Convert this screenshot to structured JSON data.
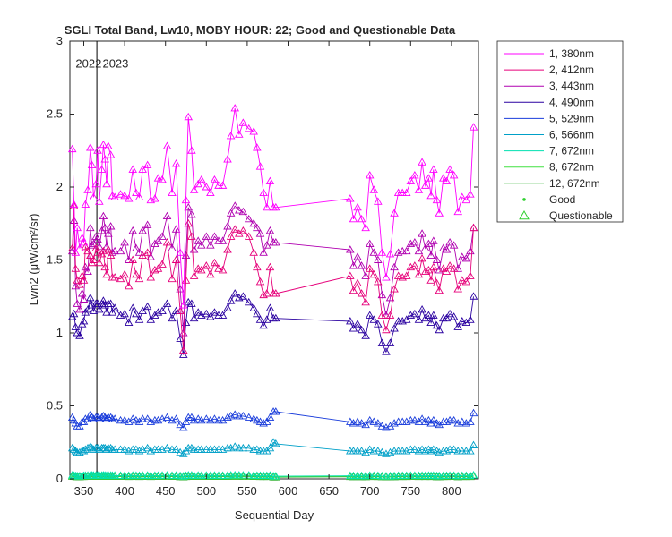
{
  "chart_data": {
    "type": "line",
    "title": "SGLI Total Band, Lw10, MOBY HOUR: 22;  Good and Questionable Data",
    "xlabel": "Sequential Day",
    "ylabel": "Lwn2 (μW/cm²/sr)",
    "xlim": [
      333,
      833
    ],
    "ylim": [
      0,
      3
    ],
    "xticks": [
      350,
      400,
      450,
      500,
      550,
      600,
      650,
      700,
      750,
      800
    ],
    "yticks": [
      0,
      0.5,
      1,
      1.5,
      2,
      2.5,
      3
    ],
    "ytick_labels": [
      "0",
      "0.5",
      "1",
      "1.5",
      "2",
      "2.5",
      "3"
    ],
    "grid": false,
    "legend_placement": "outside-right",
    "vlines": [
      {
        "x": 366,
        "label": "2023"
      }
    ],
    "annotations": [
      {
        "text": "2022",
        "x": 340,
        "y": 2.85
      },
      {
        "text": "2023",
        "x": 373,
        "y": 2.85
      }
    ],
    "x": [
      336,
      338,
      340,
      342,
      345,
      348,
      350,
      352,
      355,
      358,
      360,
      362,
      365,
      367,
      369,
      372,
      374,
      376,
      378,
      380,
      383,
      385,
      388,
      395,
      400,
      405,
      410,
      414,
      418,
      422,
      428,
      432,
      437,
      441,
      446,
      452,
      458,
      463,
      468,
      472,
      475,
      478,
      482,
      485,
      490,
      494,
      500,
      505,
      510,
      515,
      520,
      526,
      530,
      535,
      540,
      545,
      552,
      558,
      562,
      566,
      570,
      574,
      578,
      582,
      585,
      676,
      680,
      685,
      690,
      695,
      700,
      705,
      710,
      715,
      720,
      725,
      730,
      735,
      740,
      745,
      750,
      755,
      760,
      764,
      768,
      772,
      775,
      778,
      782,
      785,
      790,
      794,
      798,
      803,
      808,
      813,
      818,
      823,
      827
    ],
    "series": [
      {
        "name": "1, 380nm",
        "color": "#ff00ff",
        "values": [
          2.26,
          1.88,
          1.55,
          1.72,
          1.58,
          1.65,
          1.62,
          1.88,
          1.98,
          2.27,
          2.15,
          1.93,
          2.02,
          2.25,
          1.9,
          2.12,
          2.29,
          2.19,
          2.02,
          2.28,
          2.22,
          1.94,
          1.93,
          1.95,
          1.94,
          1.92,
          2.12,
          1.96,
          1.93,
          2.12,
          2.15,
          1.91,
          1.92,
          2.06,
          2.05,
          2.28,
          1.96,
          2.16,
          1.55,
          1.19,
          1.91,
          2.48,
          2.25,
          1.98,
          2.02,
          2.05,
          2.0,
          1.96,
          2.05,
          2.01,
          2.01,
          2.19,
          2.35,
          2.54,
          2.36,
          2.44,
          2.4,
          2.38,
          2.27,
          2.14,
          1.96,
          1.86,
          2.04,
          1.86,
          1.86,
          1.92,
          1.78,
          1.86,
          1.78,
          1.72,
          2.08,
          1.98,
          1.9,
          1.55,
          1.38,
          1.54,
          1.82,
          1.96,
          1.96,
          1.96,
          2.04,
          2.08,
          1.98,
          2.17,
          2.01,
          2.06,
          1.94,
          2.12,
          1.91,
          1.82,
          2.06,
          2.04,
          2.12,
          2.08,
          1.83,
          1.93,
          1.91,
          1.95,
          2.41
        ]
      },
      {
        "name": "2, 412nm",
        "color": "#e6007a",
        "values": [
          1.58,
          1.87,
          1.44,
          1.36,
          1.33,
          1.39,
          1.36,
          1.59,
          1.56,
          1.53,
          1.48,
          1.5,
          1.58,
          1.55,
          1.48,
          1.54,
          1.56,
          1.45,
          1.4,
          1.57,
          1.53,
          1.38,
          1.38,
          1.37,
          1.4,
          1.32,
          1.5,
          1.4,
          1.37,
          1.53,
          1.55,
          1.38,
          1.43,
          1.44,
          1.47,
          1.62,
          1.37,
          1.5,
          1.15,
          0.88,
          1.36,
          1.75,
          1.66,
          1.39,
          1.44,
          1.43,
          1.46,
          1.4,
          1.48,
          1.44,
          1.43,
          1.57,
          1.66,
          1.71,
          1.68,
          1.7,
          1.66,
          1.55,
          1.45,
          1.35,
          1.26,
          1.27,
          1.45,
          1.27,
          1.27,
          1.39,
          1.29,
          1.34,
          1.27,
          1.21,
          1.44,
          1.4,
          1.35,
          1.12,
          1.02,
          1.12,
          1.3,
          1.39,
          1.38,
          1.39,
          1.45,
          1.46,
          1.4,
          1.51,
          1.42,
          1.43,
          1.36,
          1.45,
          1.34,
          1.29,
          1.44,
          1.42,
          1.46,
          1.44,
          1.3,
          1.36,
          1.35,
          1.39,
          1.72
        ]
      },
      {
        "name": "3, 443nm",
        "color": "#b000b0",
        "values": [
          1.56,
          1.77,
          1.32,
          1.2,
          1.16,
          1.27,
          1.23,
          1.45,
          1.42,
          1.72,
          1.6,
          1.61,
          1.66,
          1.64,
          1.59,
          1.7,
          1.8,
          1.72,
          1.59,
          1.68,
          1.73,
          1.55,
          1.56,
          1.56,
          1.62,
          1.5,
          1.7,
          1.58,
          1.55,
          1.7,
          1.74,
          1.52,
          1.61,
          1.63,
          1.66,
          1.8,
          1.58,
          1.71,
          1.3,
          1.0,
          1.53,
          1.86,
          1.81,
          1.57,
          1.63,
          1.6,
          1.66,
          1.6,
          1.66,
          1.63,
          1.63,
          1.73,
          1.82,
          1.87,
          1.84,
          1.83,
          1.78,
          1.75,
          1.72,
          1.68,
          1.55,
          1.6,
          1.7,
          1.62,
          1.62,
          1.57,
          1.46,
          1.52,
          1.46,
          1.39,
          1.61,
          1.55,
          1.5,
          1.26,
          1.12,
          1.24,
          1.45,
          1.55,
          1.56,
          1.56,
          1.61,
          1.62,
          1.56,
          1.68,
          1.58,
          1.61,
          1.53,
          1.63,
          1.5,
          1.43,
          1.58,
          1.57,
          1.62,
          1.6,
          1.44,
          1.52,
          1.51,
          1.56,
          1.72
        ]
      },
      {
        "name": "4, 490nm",
        "color": "#2a00a0",
        "values": [
          1.11,
          1.13,
          1.04,
          1.0,
          0.98,
          1.06,
          1.08,
          1.14,
          1.16,
          1.24,
          1.19,
          1.15,
          1.2,
          1.2,
          1.16,
          1.2,
          1.22,
          1.19,
          1.14,
          1.2,
          1.2,
          1.14,
          1.17,
          1.12,
          1.13,
          1.07,
          1.17,
          1.13,
          1.09,
          1.15,
          1.18,
          1.09,
          1.12,
          1.14,
          1.15,
          1.2,
          1.1,
          1.15,
          0.96,
          0.85,
          1.07,
          1.21,
          1.2,
          1.1,
          1.14,
          1.12,
          1.13,
          1.11,
          1.14,
          1.12,
          1.12,
          1.17,
          1.22,
          1.27,
          1.24,
          1.25,
          1.21,
          1.17,
          1.13,
          1.09,
          1.05,
          1.09,
          1.17,
          1.1,
          1.1,
          1.08,
          1.03,
          1.06,
          1.02,
          0.98,
          1.12,
          1.09,
          1.06,
          0.93,
          0.87,
          0.93,
          1.03,
          1.08,
          1.08,
          1.09,
          1.12,
          1.13,
          1.09,
          1.16,
          1.1,
          1.12,
          1.07,
          1.12,
          1.05,
          1.02,
          1.1,
          1.1,
          1.13,
          1.11,
          1.04,
          1.08,
          1.07,
          1.09,
          1.25
        ]
      },
      {
        "name": "5, 529nm",
        "color": "#1a3ddb",
        "values": [
          0.42,
          0.4,
          0.38,
          0.36,
          0.36,
          0.39,
          0.39,
          0.41,
          0.41,
          0.44,
          0.42,
          0.41,
          0.42,
          0.42,
          0.41,
          0.42,
          0.43,
          0.42,
          0.41,
          0.42,
          0.42,
          0.41,
          0.41,
          0.4,
          0.4,
          0.39,
          0.41,
          0.4,
          0.39,
          0.41,
          0.41,
          0.39,
          0.4,
          0.4,
          0.41,
          0.42,
          0.4,
          0.41,
          0.37,
          0.35,
          0.39,
          0.42,
          0.42,
          0.4,
          0.41,
          0.4,
          0.41,
          0.4,
          0.41,
          0.4,
          0.4,
          0.42,
          0.43,
          0.44,
          0.43,
          0.43,
          0.42,
          0.41,
          0.4,
          0.39,
          0.38,
          0.39,
          0.42,
          0.46,
          0.46,
          0.39,
          0.38,
          0.39,
          0.38,
          0.37,
          0.4,
          0.39,
          0.38,
          0.36,
          0.35,
          0.36,
          0.38,
          0.39,
          0.39,
          0.39,
          0.4,
          0.4,
          0.39,
          0.41,
          0.39,
          0.4,
          0.38,
          0.4,
          0.38,
          0.37,
          0.39,
          0.39,
          0.4,
          0.4,
          0.38,
          0.39,
          0.38,
          0.39,
          0.45
        ]
      },
      {
        "name": "6, 566nm",
        "color": "#00a0c8",
        "values": [
          0.21,
          0.2,
          0.19,
          0.18,
          0.18,
          0.19,
          0.19,
          0.2,
          0.21,
          0.22,
          0.21,
          0.2,
          0.21,
          0.21,
          0.2,
          0.21,
          0.21,
          0.21,
          0.2,
          0.21,
          0.21,
          0.2,
          0.2,
          0.2,
          0.2,
          0.19,
          0.2,
          0.2,
          0.19,
          0.2,
          0.21,
          0.19,
          0.2,
          0.2,
          0.2,
          0.21,
          0.2,
          0.2,
          0.18,
          0.17,
          0.19,
          0.21,
          0.21,
          0.2,
          0.2,
          0.2,
          0.2,
          0.2,
          0.2,
          0.2,
          0.2,
          0.21,
          0.21,
          0.22,
          0.21,
          0.21,
          0.21,
          0.2,
          0.2,
          0.19,
          0.19,
          0.19,
          0.21,
          0.25,
          0.24,
          0.19,
          0.19,
          0.19,
          0.19,
          0.18,
          0.2,
          0.19,
          0.19,
          0.18,
          0.17,
          0.18,
          0.19,
          0.19,
          0.19,
          0.19,
          0.2,
          0.2,
          0.19,
          0.2,
          0.19,
          0.2,
          0.19,
          0.2,
          0.19,
          0.18,
          0.19,
          0.19,
          0.2,
          0.2,
          0.19,
          0.19,
          0.19,
          0.19,
          0.23
        ]
      },
      {
        "name": "7, 672nm",
        "color": "#00e0b0",
        "values": [
          0.024,
          0.022,
          0.02,
          0.019,
          0.019,
          0.021,
          0.021,
          0.022,
          0.023,
          0.025,
          0.024,
          0.023,
          0.023,
          0.024,
          0.023,
          0.023,
          0.024,
          0.023,
          0.022,
          0.024,
          0.023,
          0.022,
          0.023,
          0.022,
          0.022,
          0.021,
          0.023,
          0.022,
          0.021,
          0.023,
          0.023,
          0.021,
          0.022,
          0.022,
          0.023,
          0.024,
          0.022,
          0.023,
          0.02,
          0.018,
          0.021,
          0.024,
          0.024,
          0.022,
          0.023,
          0.022,
          0.023,
          0.022,
          0.023,
          0.022,
          0.022,
          0.023,
          0.024,
          0.025,
          0.024,
          0.024,
          0.024,
          0.023,
          0.022,
          0.021,
          0.021,
          0.021,
          0.023,
          0.018,
          0.018,
          0.021,
          0.02,
          0.021,
          0.02,
          0.02,
          0.022,
          0.021,
          0.021,
          0.019,
          0.018,
          0.019,
          0.02,
          0.021,
          0.021,
          0.021,
          0.022,
          0.022,
          0.021,
          0.022,
          0.021,
          0.022,
          0.021,
          0.022,
          0.02,
          0.02,
          0.021,
          0.021,
          0.022,
          0.022,
          0.02,
          0.021,
          0.021,
          0.021,
          0.025
        ]
      },
      {
        "name": "8, 672nm",
        "color": "#40e040",
        "values": [
          0.02,
          0.018,
          0.017,
          0.016,
          0.016,
          0.018,
          0.018,
          0.019,
          0.02,
          0.021,
          0.02,
          0.019,
          0.02,
          0.02,
          0.019,
          0.02,
          0.02,
          0.02,
          0.019,
          0.02,
          0.02,
          0.019,
          0.019,
          0.019,
          0.019,
          0.018,
          0.019,
          0.019,
          0.018,
          0.019,
          0.02,
          0.018,
          0.019,
          0.019,
          0.019,
          0.02,
          0.019,
          0.019,
          0.017,
          0.015,
          0.018,
          0.02,
          0.02,
          0.019,
          0.019,
          0.019,
          0.019,
          0.019,
          0.019,
          0.019,
          0.019,
          0.02,
          0.02,
          0.021,
          0.02,
          0.02,
          0.02,
          0.019,
          0.019,
          0.018,
          0.018,
          0.018,
          0.019,
          0.015,
          0.015,
          0.018,
          0.017,
          0.018,
          0.017,
          0.017,
          0.019,
          0.018,
          0.018,
          0.016,
          0.015,
          0.016,
          0.017,
          0.018,
          0.018,
          0.018,
          0.019,
          0.019,
          0.018,
          0.019,
          0.018,
          0.019,
          0.018,
          0.019,
          0.017,
          0.017,
          0.018,
          0.018,
          0.019,
          0.019,
          0.017,
          0.018,
          0.018,
          0.018,
          0.022
        ]
      },
      {
        "name": "12, 672nm",
        "color": "#30b030",
        "values": [
          0.016,
          0.015,
          0.014,
          0.013,
          0.013,
          0.014,
          0.014,
          0.015,
          0.016,
          0.017,
          0.016,
          0.015,
          0.016,
          0.016,
          0.015,
          0.016,
          0.016,
          0.016,
          0.015,
          0.016,
          0.016,
          0.015,
          0.015,
          0.015,
          0.015,
          0.014,
          0.015,
          0.015,
          0.014,
          0.015,
          0.016,
          0.014,
          0.015,
          0.015,
          0.015,
          0.016,
          0.015,
          0.015,
          0.013,
          0.012,
          0.014,
          0.016,
          0.016,
          0.015,
          0.015,
          0.015,
          0.015,
          0.015,
          0.015,
          0.015,
          0.015,
          0.016,
          0.016,
          0.017,
          0.016,
          0.016,
          0.016,
          0.015,
          0.015,
          0.014,
          0.014,
          0.014,
          0.015,
          0.011,
          0.011,
          0.014,
          0.013,
          0.014,
          0.013,
          0.013,
          0.015,
          0.014,
          0.014,
          0.013,
          0.012,
          0.013,
          0.013,
          0.014,
          0.014,
          0.014,
          0.015,
          0.015,
          0.014,
          0.015,
          0.014,
          0.015,
          0.014,
          0.015,
          0.013,
          0.013,
          0.014,
          0.014,
          0.015,
          0.015,
          0.013,
          0.014,
          0.014,
          0.014,
          0.018
        ]
      }
    ],
    "legend": {
      "entries": [
        "1, 380nm",
        "2, 412nm",
        "3, 443nm",
        "4, 490nm",
        "5, 529nm",
        "6, 566nm",
        "7, 672nm",
        "8, 672nm",
        "12, 672nm"
      ],
      "marker_entries": [
        {
          "label": "Good",
          "marker": "dot",
          "color": "#30d030"
        },
        {
          "label": "Questionable",
          "marker": "triangle",
          "color": "#30d030"
        }
      ]
    }
  }
}
